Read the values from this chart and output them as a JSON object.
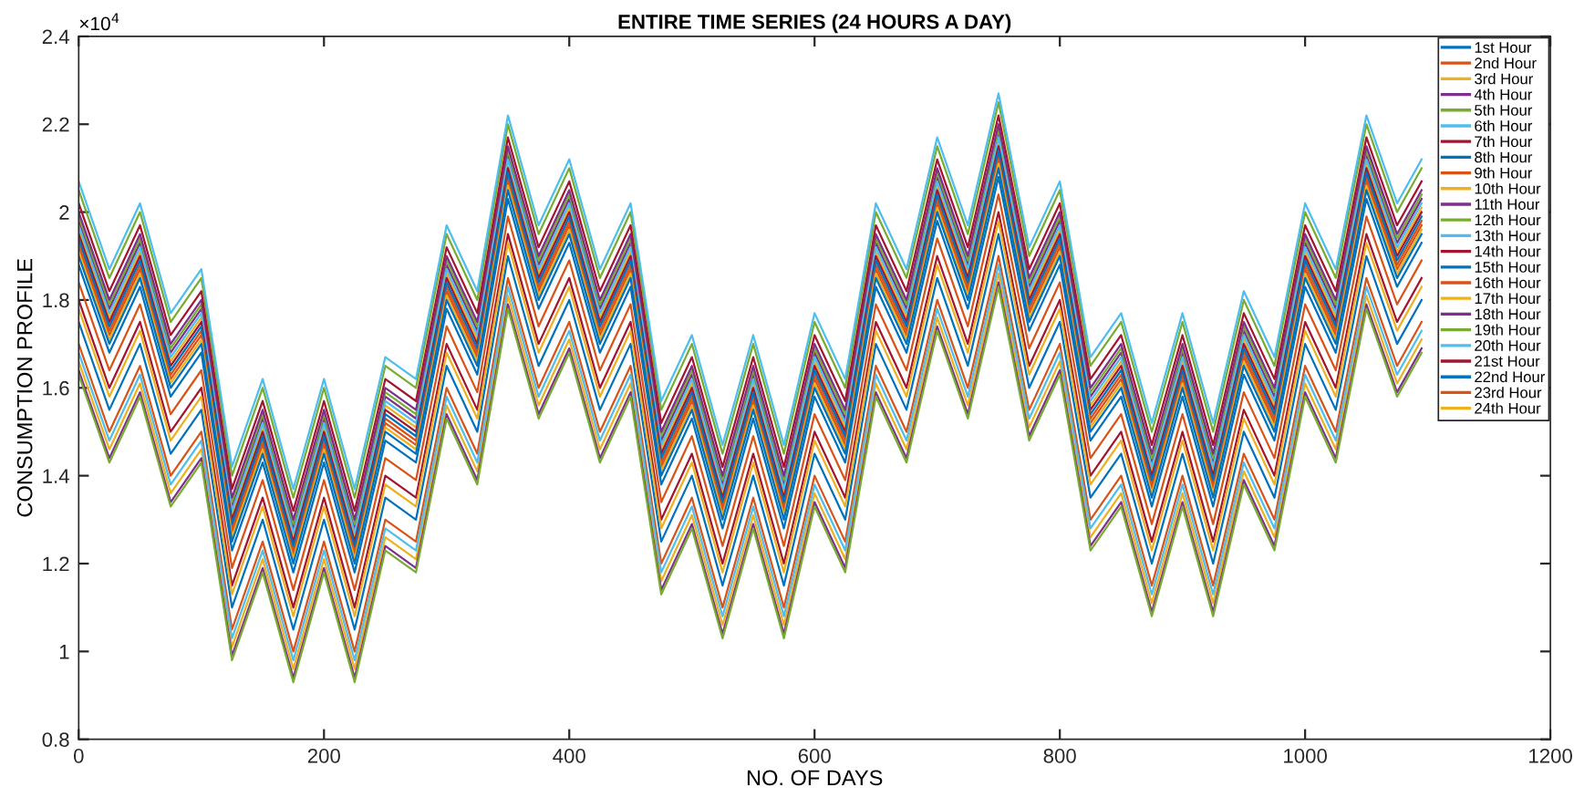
{
  "chart_data": {
    "type": "line",
    "title": "ENTIRE TIME SERIES (24 HOURS A DAY)",
    "xlabel": "NO. OF DAYS",
    "ylabel": "CONSUMPTION PROFILE",
    "annotations": [
      "×10$^{4}$"
    ],
    "xlim": [
      0,
      1200
    ],
    "xticks": [
      0,
      200,
      400,
      600,
      800,
      1000,
      1200
    ],
    "ylim": [
      0.8,
      2.4
    ],
    "yticks": [
      0.8,
      1,
      1.2,
      1.4,
      1.6,
      1.8,
      2,
      2.2,
      2.4
    ],
    "grid": false,
    "legend": "top right",
    "marker": "none",
    "line_style": "solid",
    "x": [
      0,
      25,
      50,
      75,
      100,
      125,
      150,
      175,
      200,
      225,
      250,
      275,
      300,
      325,
      350,
      375,
      400,
      425,
      450,
      475,
      500,
      525,
      550,
      575,
      600,
      625,
      650,
      675,
      700,
      725,
      750,
      775,
      800,
      825,
      850,
      875,
      900,
      925,
      950,
      975,
      1000,
      1025,
      1050,
      1075,
      1095
    ],
    "series": [
      {
        "name": "1st Hour",
        "color": "#0072bd",
        "values": [
          1.75,
          1.55,
          1.7,
          1.45,
          1.55,
          1.1,
          1.3,
          1.05,
          1.3,
          1.05,
          1.35,
          1.3,
          1.65,
          1.5,
          1.9,
          1.65,
          1.8,
          1.55,
          1.7,
          1.25,
          1.4,
          1.15,
          1.4,
          1.15,
          1.45,
          1.3,
          1.7,
          1.55,
          1.85,
          1.65,
          1.95,
          1.6,
          1.75,
          1.35,
          1.45,
          1.2,
          1.45,
          1.2,
          1.5,
          1.35,
          1.7,
          1.55,
          1.9,
          1.7,
          1.8
        ]
      },
      {
        "name": "2nd Hour",
        "color": "#d95319",
        "values": [
          1.7,
          1.5,
          1.65,
          1.4,
          1.5,
          1.05,
          1.25,
          1.0,
          1.25,
          1.0,
          1.3,
          1.25,
          1.6,
          1.45,
          1.85,
          1.6,
          1.75,
          1.5,
          1.65,
          1.2,
          1.35,
          1.1,
          1.35,
          1.1,
          1.4,
          1.25,
          1.65,
          1.5,
          1.8,
          1.6,
          1.9,
          1.55,
          1.7,
          1.3,
          1.4,
          1.15,
          1.4,
          1.15,
          1.45,
          1.3,
          1.65,
          1.5,
          1.85,
          1.65,
          1.75
        ]
      },
      {
        "name": "3rd Hour",
        "color": "#edb120",
        "values": [
          1.66,
          1.46,
          1.61,
          1.36,
          1.46,
          1.01,
          1.21,
          0.96,
          1.21,
          0.96,
          1.26,
          1.21,
          1.56,
          1.41,
          1.81,
          1.56,
          1.71,
          1.46,
          1.61,
          1.16,
          1.31,
          1.06,
          1.31,
          1.06,
          1.36,
          1.21,
          1.61,
          1.46,
          1.76,
          1.56,
          1.86,
          1.51,
          1.66,
          1.26,
          1.36,
          1.11,
          1.36,
          1.11,
          1.41,
          1.26,
          1.61,
          1.46,
          1.81,
          1.61,
          1.71
        ]
      },
      {
        "name": "4th Hour",
        "color": "#7e2f8e",
        "values": [
          1.64,
          1.44,
          1.59,
          1.34,
          1.44,
          0.99,
          1.19,
          0.94,
          1.19,
          0.94,
          1.24,
          1.19,
          1.54,
          1.39,
          1.79,
          1.54,
          1.69,
          1.44,
          1.59,
          1.14,
          1.29,
          1.04,
          1.29,
          1.04,
          1.34,
          1.19,
          1.59,
          1.44,
          1.74,
          1.54,
          1.84,
          1.49,
          1.64,
          1.24,
          1.34,
          1.09,
          1.34,
          1.09,
          1.39,
          1.24,
          1.59,
          1.44,
          1.79,
          1.59,
          1.69
        ]
      },
      {
        "name": "5th Hour",
        "color": "#77ac30",
        "values": [
          1.63,
          1.43,
          1.58,
          1.33,
          1.43,
          0.98,
          1.18,
          0.93,
          1.18,
          0.93,
          1.23,
          1.18,
          1.53,
          1.38,
          1.78,
          1.53,
          1.68,
          1.43,
          1.58,
          1.13,
          1.28,
          1.03,
          1.28,
          1.03,
          1.33,
          1.18,
          1.58,
          1.43,
          1.73,
          1.53,
          1.83,
          1.48,
          1.63,
          1.23,
          1.33,
          1.08,
          1.33,
          1.08,
          1.38,
          1.23,
          1.58,
          1.43,
          1.78,
          1.58,
          1.68
        ]
      },
      {
        "name": "6th Hour",
        "color": "#4dbeee",
        "values": [
          1.68,
          1.48,
          1.63,
          1.38,
          1.48,
          1.03,
          1.23,
          0.98,
          1.23,
          0.98,
          1.28,
          1.23,
          1.58,
          1.43,
          1.83,
          1.58,
          1.73,
          1.48,
          1.63,
          1.18,
          1.33,
          1.08,
          1.33,
          1.08,
          1.38,
          1.23,
          1.63,
          1.48,
          1.78,
          1.58,
          1.88,
          1.53,
          1.68,
          1.28,
          1.38,
          1.13,
          1.38,
          1.13,
          1.43,
          1.28,
          1.63,
          1.48,
          1.83,
          1.63,
          1.73
        ]
      },
      {
        "name": "7th Hour",
        "color": "#a2142f",
        "values": [
          1.8,
          1.6,
          1.75,
          1.5,
          1.6,
          1.15,
          1.35,
          1.1,
          1.35,
          1.1,
          1.4,
          1.35,
          1.7,
          1.55,
          1.95,
          1.7,
          1.85,
          1.6,
          1.75,
          1.3,
          1.45,
          1.2,
          1.45,
          1.2,
          1.5,
          1.35,
          1.75,
          1.6,
          1.9,
          1.7,
          2.0,
          1.65,
          1.8,
          1.4,
          1.5,
          1.25,
          1.5,
          1.25,
          1.55,
          1.4,
          1.75,
          1.6,
          1.95,
          1.75,
          1.85
        ]
      },
      {
        "name": "8th Hour",
        "color": "#0072bd",
        "values": [
          1.88,
          1.68,
          1.83,
          1.58,
          1.68,
          1.23,
          1.43,
          1.18,
          1.43,
          1.18,
          1.48,
          1.43,
          1.78,
          1.63,
          2.03,
          1.78,
          1.93,
          1.68,
          1.83,
          1.38,
          1.53,
          1.28,
          1.53,
          1.28,
          1.58,
          1.43,
          1.83,
          1.68,
          1.98,
          1.78,
          2.08,
          1.73,
          1.88,
          1.48,
          1.58,
          1.33,
          1.58,
          1.33,
          1.63,
          1.48,
          1.83,
          1.68,
          2.03,
          1.83,
          1.93
        ]
      },
      {
        "name": "9th Hour",
        "color": "#d95319",
        "values": [
          1.93,
          1.73,
          1.88,
          1.63,
          1.73,
          1.28,
          1.48,
          1.23,
          1.48,
          1.23,
          1.53,
          1.48,
          1.83,
          1.68,
          2.08,
          1.83,
          1.98,
          1.73,
          1.88,
          1.43,
          1.58,
          1.33,
          1.58,
          1.33,
          1.63,
          1.48,
          1.88,
          1.73,
          2.03,
          1.83,
          2.13,
          1.78,
          1.93,
          1.53,
          1.63,
          1.38,
          1.63,
          1.38,
          1.68,
          1.53,
          1.88,
          1.73,
          2.08,
          1.88,
          1.98
        ]
      },
      {
        "name": "10th Hour",
        "color": "#edb120",
        "values": [
          1.96,
          1.76,
          1.91,
          1.66,
          1.76,
          1.31,
          1.51,
          1.26,
          1.51,
          1.26,
          1.56,
          1.51,
          1.86,
          1.71,
          2.11,
          1.86,
          2.01,
          1.76,
          1.91,
          1.46,
          1.61,
          1.36,
          1.61,
          1.36,
          1.66,
          1.51,
          1.91,
          1.76,
          2.06,
          1.86,
          2.16,
          1.81,
          1.96,
          1.56,
          1.66,
          1.41,
          1.66,
          1.41,
          1.71,
          1.56,
          1.91,
          1.76,
          2.11,
          1.91,
          2.01
        ]
      },
      {
        "name": "11th Hour",
        "color": "#7e2f8e",
        "values": [
          1.98,
          1.78,
          1.93,
          1.68,
          1.78,
          1.33,
          1.53,
          1.28,
          1.53,
          1.28,
          1.58,
          1.53,
          1.88,
          1.73,
          2.13,
          1.88,
          2.03,
          1.78,
          1.93,
          1.48,
          1.63,
          1.38,
          1.63,
          1.38,
          1.68,
          1.53,
          1.93,
          1.78,
          2.08,
          1.88,
          2.18,
          1.83,
          1.98,
          1.58,
          1.68,
          1.43,
          1.68,
          1.43,
          1.73,
          1.58,
          1.93,
          1.78,
          2.13,
          1.93,
          2.03
        ]
      },
      {
        "name": "12th Hour",
        "color": "#77ac30",
        "values": [
          1.99,
          1.79,
          1.94,
          1.69,
          1.79,
          1.34,
          1.54,
          1.29,
          1.54,
          1.29,
          1.59,
          1.54,
          1.89,
          1.74,
          2.14,
          1.89,
          2.04,
          1.79,
          1.94,
          1.49,
          1.64,
          1.39,
          1.64,
          1.39,
          1.69,
          1.54,
          1.94,
          1.79,
          2.09,
          1.89,
          2.19,
          1.84,
          1.99,
          1.59,
          1.69,
          1.44,
          1.69,
          1.44,
          1.74,
          1.59,
          1.94,
          1.79,
          2.14,
          1.94,
          2.04
        ]
      },
      {
        "name": "13th Hour",
        "color": "#4dbeee",
        "values": [
          1.97,
          1.77,
          1.92,
          1.67,
          1.77,
          1.32,
          1.52,
          1.27,
          1.52,
          1.27,
          1.57,
          1.52,
          1.87,
          1.72,
          2.12,
          1.87,
          2.02,
          1.77,
          1.92,
          1.47,
          1.62,
          1.37,
          1.62,
          1.37,
          1.67,
          1.52,
          1.92,
          1.77,
          2.07,
          1.87,
          2.17,
          1.82,
          1.97,
          1.57,
          1.67,
          1.42,
          1.67,
          1.42,
          1.72,
          1.57,
          1.92,
          1.77,
          2.12,
          1.92,
          2.02
        ]
      },
      {
        "name": "14th Hour",
        "color": "#a2142f",
        "values": [
          1.95,
          1.75,
          1.9,
          1.65,
          1.75,
          1.3,
          1.5,
          1.25,
          1.5,
          1.25,
          1.55,
          1.5,
          1.85,
          1.7,
          2.1,
          1.85,
          2.0,
          1.75,
          1.9,
          1.45,
          1.6,
          1.35,
          1.6,
          1.35,
          1.65,
          1.5,
          1.9,
          1.75,
          2.05,
          1.85,
          2.15,
          1.8,
          1.95,
          1.55,
          1.65,
          1.4,
          1.65,
          1.4,
          1.7,
          1.55,
          1.9,
          1.75,
          2.1,
          1.9,
          2.0
        ]
      },
      {
        "name": "15th Hour",
        "color": "#0072bd",
        "values": [
          1.94,
          1.74,
          1.89,
          1.64,
          1.74,
          1.29,
          1.49,
          1.24,
          1.49,
          1.24,
          1.54,
          1.49,
          1.84,
          1.69,
          2.09,
          1.84,
          1.99,
          1.74,
          1.89,
          1.44,
          1.59,
          1.34,
          1.59,
          1.34,
          1.64,
          1.49,
          1.89,
          1.74,
          2.04,
          1.84,
          2.14,
          1.79,
          1.94,
          1.54,
          1.64,
          1.39,
          1.64,
          1.39,
          1.69,
          1.54,
          1.89,
          1.74,
          2.09,
          1.89,
          1.99
        ]
      },
      {
        "name": "16th Hour",
        "color": "#d95319",
        "values": [
          1.92,
          1.72,
          1.87,
          1.62,
          1.72,
          1.27,
          1.47,
          1.22,
          1.47,
          1.22,
          1.52,
          1.47,
          1.82,
          1.67,
          2.07,
          1.82,
          1.97,
          1.72,
          1.87,
          1.42,
          1.57,
          1.32,
          1.57,
          1.32,
          1.62,
          1.47,
          1.87,
          1.72,
          2.02,
          1.82,
          2.12,
          1.77,
          1.92,
          1.52,
          1.62,
          1.37,
          1.62,
          1.37,
          1.67,
          1.52,
          1.87,
          1.72,
          2.07,
          1.87,
          1.97
        ]
      },
      {
        "name": "17th Hour",
        "color": "#edb120",
        "values": [
          1.91,
          1.71,
          1.86,
          1.61,
          1.71,
          1.26,
          1.46,
          1.21,
          1.46,
          1.21,
          1.51,
          1.46,
          1.81,
          1.66,
          2.06,
          1.81,
          1.96,
          1.71,
          1.86,
          1.41,
          1.56,
          1.31,
          1.56,
          1.31,
          1.61,
          1.46,
          1.86,
          1.71,
          2.01,
          1.81,
          2.11,
          1.76,
          1.91,
          1.51,
          1.61,
          1.36,
          1.61,
          1.36,
          1.66,
          1.51,
          1.86,
          1.71,
          2.06,
          1.86,
          1.96
        ]
      },
      {
        "name": "18th Hour",
        "color": "#7e2f8e",
        "values": [
          2.0,
          1.8,
          1.95,
          1.7,
          1.8,
          1.35,
          1.55,
          1.3,
          1.55,
          1.3,
          1.6,
          1.55,
          1.9,
          1.75,
          2.15,
          1.9,
          2.05,
          1.8,
          1.95,
          1.5,
          1.65,
          1.4,
          1.65,
          1.4,
          1.7,
          1.55,
          1.95,
          1.8,
          2.1,
          1.9,
          2.2,
          1.85,
          2.0,
          1.6,
          1.7,
          1.45,
          1.7,
          1.45,
          1.75,
          1.6,
          1.95,
          1.8,
          2.15,
          1.95,
          2.05
        ]
      },
      {
        "name": "19th Hour",
        "color": "#77ac30",
        "values": [
          2.05,
          1.85,
          2.0,
          1.75,
          1.85,
          1.4,
          1.6,
          1.35,
          1.6,
          1.35,
          1.65,
          1.6,
          1.95,
          1.8,
          2.2,
          1.95,
          2.1,
          1.85,
          2.0,
          1.55,
          1.7,
          1.45,
          1.7,
          1.45,
          1.75,
          1.6,
          2.0,
          1.85,
          2.15,
          1.95,
          2.25,
          1.9,
          2.05,
          1.65,
          1.75,
          1.5,
          1.75,
          1.5,
          1.8,
          1.65,
          2.0,
          1.85,
          2.2,
          2.0,
          2.1
        ]
      },
      {
        "name": "20th Hour",
        "color": "#4dbeee",
        "values": [
          2.07,
          1.87,
          2.02,
          1.77,
          1.87,
          1.42,
          1.62,
          1.37,
          1.62,
          1.37,
          1.67,
          1.62,
          1.97,
          1.82,
          2.22,
          1.97,
          2.12,
          1.87,
          2.02,
          1.57,
          1.72,
          1.47,
          1.72,
          1.47,
          1.77,
          1.62,
          2.02,
          1.87,
          2.17,
          1.97,
          2.27,
          1.92,
          2.07,
          1.67,
          1.77,
          1.52,
          1.77,
          1.52,
          1.82,
          1.67,
          2.02,
          1.87,
          2.22,
          2.02,
          2.12
        ]
      },
      {
        "name": "21st Hour",
        "color": "#a2142f",
        "values": [
          2.02,
          1.82,
          1.97,
          1.72,
          1.82,
          1.37,
          1.57,
          1.32,
          1.57,
          1.32,
          1.62,
          1.57,
          1.92,
          1.77,
          2.17,
          1.92,
          2.07,
          1.82,
          1.97,
          1.52,
          1.67,
          1.42,
          1.67,
          1.42,
          1.72,
          1.57,
          1.97,
          1.82,
          2.12,
          1.92,
          2.22,
          1.87,
          2.02,
          1.62,
          1.72,
          1.47,
          1.72,
          1.47,
          1.77,
          1.62,
          1.97,
          1.82,
          2.17,
          1.97,
          2.07
        ]
      },
      {
        "name": "22nd Hour",
        "color": "#0072bd",
        "values": [
          1.9,
          1.7,
          1.85,
          1.6,
          1.7,
          1.25,
          1.45,
          1.2,
          1.45,
          1.2,
          1.5,
          1.45,
          1.8,
          1.65,
          2.05,
          1.8,
          1.95,
          1.7,
          1.85,
          1.4,
          1.55,
          1.3,
          1.55,
          1.3,
          1.6,
          1.45,
          1.85,
          1.7,
          2.0,
          1.8,
          2.1,
          1.75,
          1.9,
          1.5,
          1.6,
          1.35,
          1.6,
          1.35,
          1.65,
          1.5,
          1.85,
          1.7,
          2.05,
          1.85,
          1.95
        ]
      },
      {
        "name": "23rd Hour",
        "color": "#d95319",
        "values": [
          1.84,
          1.64,
          1.79,
          1.54,
          1.64,
          1.19,
          1.39,
          1.14,
          1.39,
          1.14,
          1.44,
          1.39,
          1.74,
          1.59,
          1.99,
          1.74,
          1.89,
          1.64,
          1.79,
          1.34,
          1.49,
          1.24,
          1.49,
          1.24,
          1.54,
          1.39,
          1.79,
          1.64,
          1.94,
          1.74,
          2.04,
          1.69,
          1.84,
          1.44,
          1.54,
          1.29,
          1.54,
          1.29,
          1.59,
          1.44,
          1.79,
          1.64,
          1.99,
          1.79,
          1.89
        ]
      },
      {
        "name": "24th Hour",
        "color": "#edb120",
        "values": [
          1.78,
          1.58,
          1.73,
          1.48,
          1.58,
          1.13,
          1.33,
          1.08,
          1.33,
          1.08,
          1.38,
          1.33,
          1.68,
          1.53,
          1.93,
          1.68,
          1.83,
          1.58,
          1.73,
          1.28,
          1.43,
          1.18,
          1.43,
          1.18,
          1.48,
          1.33,
          1.73,
          1.58,
          1.88,
          1.68,
          1.98,
          1.63,
          1.78,
          1.38,
          1.48,
          1.23,
          1.48,
          1.23,
          1.53,
          1.38,
          1.73,
          1.58,
          1.93,
          1.73,
          1.83
        ]
      }
    ]
  }
}
